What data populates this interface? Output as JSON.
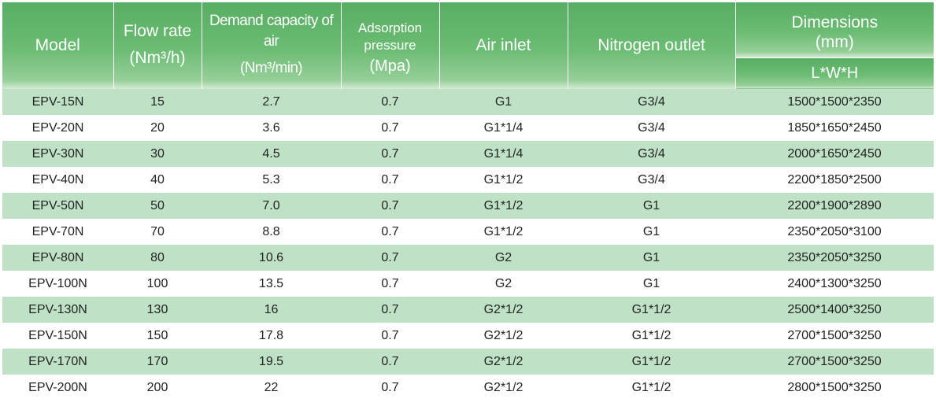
{
  "header": {
    "model": "Model",
    "flow_rate": "Flow rate",
    "flow_rate_unit": "(Nm³/h)",
    "demand_capacity": "Demand capacity of air",
    "demand_capacity_unit": "(Nm³/min)",
    "adsorption_1": "Adsorption",
    "adsorption_2": "pressure",
    "adsorption_unit": "(Mpa)",
    "air_inlet": "Air inlet",
    "nitrogen_outlet": "Nitrogen outlet",
    "dimensions": "Dimensions",
    "dimensions_unit": "(mm)",
    "dimensions_sub": "L*W*H"
  },
  "rows": [
    {
      "model": "EPV-15N",
      "flow": "15",
      "capacity": "2.7",
      "pressure": "0.7",
      "inlet": "G1",
      "outlet": "G3/4",
      "dims": "1500*1500*2350"
    },
    {
      "model": "EPV-20N",
      "flow": "20",
      "capacity": "3.6",
      "pressure": "0.7",
      "inlet": "G1*1/4",
      "outlet": "G3/4",
      "dims": "1850*1650*2450"
    },
    {
      "model": "EPV-30N",
      "flow": "30",
      "capacity": "4.5",
      "pressure": "0.7",
      "inlet": "G1*1/4",
      "outlet": "G3/4",
      "dims": "2000*1650*2450"
    },
    {
      "model": "EPV-40N",
      "flow": "40",
      "capacity": "5.3",
      "pressure": "0.7",
      "inlet": "G1*1/2",
      "outlet": "G3/4",
      "dims": "2200*1850*2500"
    },
    {
      "model": "EPV-50N",
      "flow": "50",
      "capacity": "7.0",
      "pressure": "0.7",
      "inlet": "G1*1/2",
      "outlet": "G1",
      "dims": "2200*1900*2890"
    },
    {
      "model": "EPV-70N",
      "flow": "70",
      "capacity": "8.8",
      "pressure": "0.7",
      "inlet": "G1*1/2",
      "outlet": "G1",
      "dims": "2350*2050*3100"
    },
    {
      "model": "EPV-80N",
      "flow": "80",
      "capacity": "10.6",
      "pressure": "0.7",
      "inlet": "G2",
      "outlet": "G1",
      "dims": "2350*2050*3250"
    },
    {
      "model": "EPV-100N",
      "flow": "100",
      "capacity": "13.5",
      "pressure": "0.7",
      "inlet": "G2",
      "outlet": "G1",
      "dims": "2400*1300*3250"
    },
    {
      "model": "EPV-130N",
      "flow": "130",
      "capacity": "16",
      "pressure": "0.7",
      "inlet": "G2*1/2",
      "outlet": "G1*1/2",
      "dims": "2500*1400*3250"
    },
    {
      "model": "EPV-150N",
      "flow": "150",
      "capacity": "17.8",
      "pressure": "0.7",
      "inlet": "G2*1/2",
      "outlet": "G1*1/2",
      "dims": "2700*1500*3250"
    },
    {
      "model": "EPV-170N",
      "flow": "170",
      "capacity": "19.5",
      "pressure": "0.7",
      "inlet": "G2*1/2",
      "outlet": "G1*1/2",
      "dims": "2700*1500*3250"
    },
    {
      "model": "EPV-200N",
      "flow": "200",
      "capacity": "22",
      "pressure": "0.7",
      "inlet": "G2*1/2",
      "outlet": "G1*1/2",
      "dims": "2800*1500*3250"
    }
  ],
  "colors": {
    "header_green": "#57ae62",
    "row_green": "#bfe2c6",
    "row_white": "#ffffff"
  }
}
